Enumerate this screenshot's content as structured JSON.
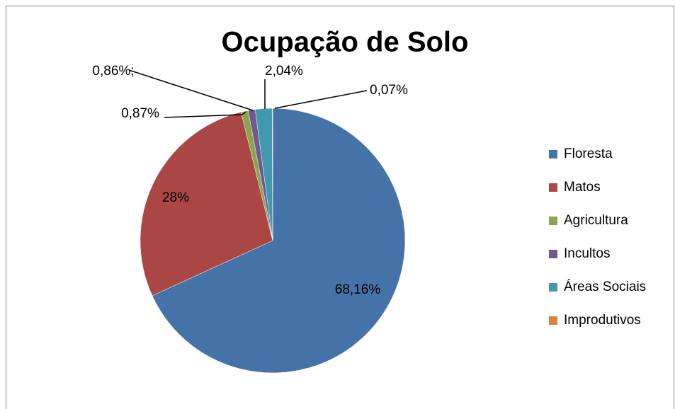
{
  "chart_data": {
    "type": "pie",
    "title": "Ocupação de Solo",
    "categories": [
      "Floresta",
      "Matos",
      "Agricultura",
      "Incultos",
      "Áreas Sociais",
      "Improdutivos"
    ],
    "values": [
      68.16,
      28,
      0.87,
      0.86,
      2.04,
      0.07
    ],
    "value_labels": [
      "68,16%",
      "28%",
      "0,87%",
      "0,86%;",
      "2,04%",
      "0,07%"
    ],
    "colors": [
      "#4572a7",
      "#aa4643",
      "#89a54e",
      "#71588f",
      "#4198af",
      "#db843d"
    ],
    "legend": "right"
  }
}
